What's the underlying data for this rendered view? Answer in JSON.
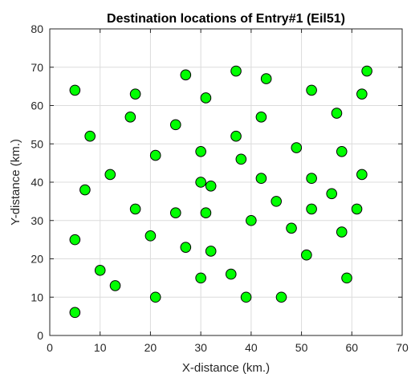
{
  "chart_data": {
    "type": "scatter",
    "title": "Destination locations of Entry#1 (Eil51)",
    "xlabel": "X-distance (km.)",
    "ylabel": "Y-distance (km.)",
    "xlim": [
      0,
      70
    ],
    "ylim": [
      0,
      80
    ],
    "xticks": [
      "0",
      "10",
      "20",
      "30",
      "40",
      "50",
      "60",
      "70"
    ],
    "yticks": [
      "0",
      "10",
      "20",
      "30",
      "40",
      "50",
      "60",
      "70",
      "80"
    ],
    "grid": true,
    "marker_color": "#00ff00",
    "marker_edge_color": "#000000",
    "series": [
      {
        "points": [
          [
            5,
            64
          ],
          [
            5,
            25
          ],
          [
            5,
            6
          ],
          [
            7,
            38
          ],
          [
            8,
            52
          ],
          [
            10,
            17
          ],
          [
            12,
            42
          ],
          [
            13,
            13
          ],
          [
            16,
            57
          ],
          [
            17,
            63
          ],
          [
            17,
            33
          ],
          [
            20,
            26
          ],
          [
            21,
            47
          ],
          [
            21,
            10
          ],
          [
            25,
            55
          ],
          [
            25,
            32
          ],
          [
            27,
            68
          ],
          [
            27,
            23
          ],
          [
            30,
            48
          ],
          [
            30,
            40
          ],
          [
            30,
            15
          ],
          [
            31,
            62
          ],
          [
            31,
            32
          ],
          [
            32,
            39
          ],
          [
            32,
            22
          ],
          [
            36,
            16
          ],
          [
            37,
            69
          ],
          [
            37,
            52
          ],
          [
            38,
            46
          ],
          [
            39,
            10
          ],
          [
            40,
            30
          ],
          [
            42,
            57
          ],
          [
            42,
            41
          ],
          [
            43,
            67
          ],
          [
            45,
            35
          ],
          [
            46,
            10
          ],
          [
            48,
            28
          ],
          [
            49,
            49
          ],
          [
            51,
            21
          ],
          [
            52,
            64
          ],
          [
            52,
            41
          ],
          [
            52,
            33
          ],
          [
            56,
            37
          ],
          [
            57,
            58
          ],
          [
            58,
            48
          ],
          [
            58,
            27
          ],
          [
            59,
            15
          ],
          [
            61,
            33
          ],
          [
            62,
            63
          ],
          [
            62,
            42
          ],
          [
            63,
            69
          ]
        ]
      }
    ]
  }
}
